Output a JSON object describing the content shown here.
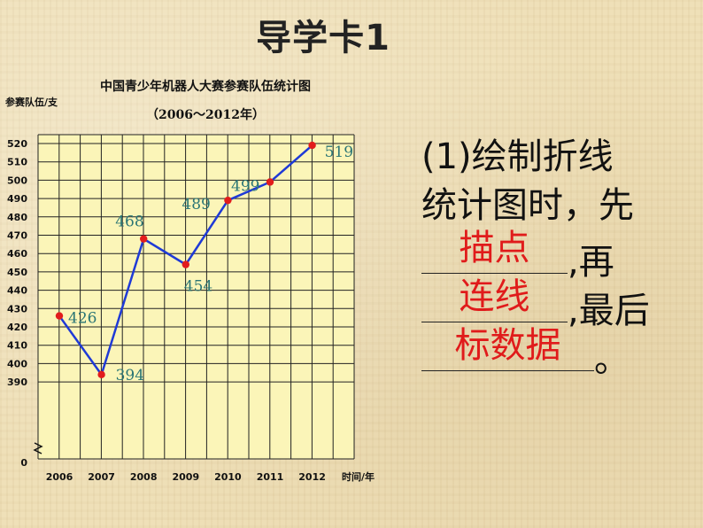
{
  "slide": {
    "title": "导学卡1"
  },
  "chart_data": {
    "type": "line",
    "title": "中国青少年机器人大赛参赛队伍统计图",
    "subtitle": "（2006～2012年）",
    "xlabel": "时间/年",
    "ylabel": "参赛队伍/支",
    "x": [
      "2006",
      "2007",
      "2008",
      "2009",
      "2010",
      "2011",
      "2012"
    ],
    "series": [
      {
        "values": [
          426,
          394,
          468,
          454,
          489,
          499,
          519
        ]
      }
    ],
    "yticks": [
      390,
      400,
      410,
      420,
      430,
      440,
      450,
      460,
      470,
      480,
      490,
      500,
      510,
      520
    ],
    "y_zero_label": "0",
    "ylim": [
      385,
      520
    ],
    "y_axis_break": true,
    "grid": true,
    "line_color": "#1f3ad6",
    "point_color": "#e21c1c",
    "label_color": "#2a7575",
    "grid_fill": "#fbf5b8"
  },
  "question": {
    "lines": [
      {
        "text": "(1)绘制折线"
      },
      {
        "text": "统计图时，先"
      },
      {
        "answer": "描点",
        "after": ",再"
      },
      {
        "answer": "连线",
        "after": ",最后"
      },
      {
        "answer": "标数据",
        "after": "。"
      }
    ],
    "answer_color": "#e01b1b"
  }
}
